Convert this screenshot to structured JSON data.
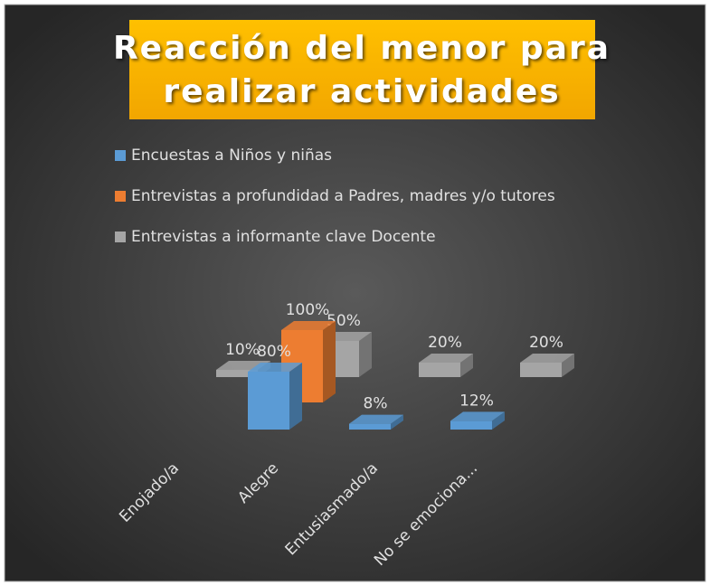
{
  "chart_data": {
    "type": "bar3d",
    "title": [
      "Reacción del menor para",
      "realizar actividades"
    ],
    "categories": [
      "Enojado/a",
      "Alegre",
      "Entusiasmado/a",
      "No se emociona..."
    ],
    "series": [
      {
        "name": "Encuestas a Niños y niñas",
        "color": "#5b9bd5",
        "values": [
          null,
          80,
          8,
          12
        ],
        "value_labels": [
          null,
          "80%",
          "8%",
          "12%"
        ]
      },
      {
        "name": "Entrevistas a profundidad a Padres, madres y/o tutores",
        "color": "#ed7d31",
        "values": [
          null,
          100,
          null,
          null
        ],
        "value_labels": [
          null,
          "100%",
          null,
          null
        ]
      },
      {
        "name": "Entrevistas a informante clave Docente",
        "color": "#a5a5a5",
        "values": [
          10,
          50,
          20,
          20
        ],
        "value_labels": [
          "10%",
          "50%",
          "20%",
          "20%"
        ]
      }
    ],
    "legend": "top"
  }
}
